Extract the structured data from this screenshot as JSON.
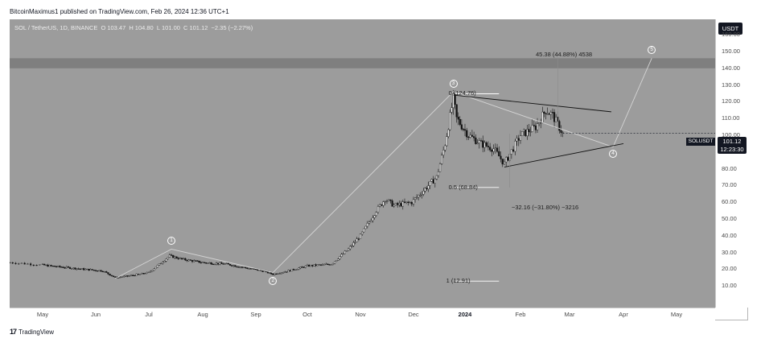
{
  "header": {
    "caption": "BitcoinMaximus1 published on TradingView.com, Feb 26, 2024 12:36 UTC+1"
  },
  "legend": {
    "symbol": "SOL / TetherUS, 1D, BINANCE",
    "open_label": "O",
    "open": "103.47",
    "high_label": "H",
    "high": "104.80",
    "low_label": "L",
    "low": "101.00",
    "close_label": "C",
    "close": "101.12",
    "change": "−2.35 (−2.27%)"
  },
  "price_axis": {
    "currency": "USDT",
    "symbol_tag": "SOLUSDT",
    "last_price": "101.12",
    "countdown": "12:23:30"
  },
  "annotations": {
    "fib_top": "0 (124.76)",
    "fib_mid": "0.5 (68.84)",
    "fib_bottom": "1 (12.91)",
    "measure_up": "45.38 (44.88%) 4538",
    "measure_down": "−32.16 (−31.80%) −3216",
    "waves": [
      "1",
      "2",
      "3",
      "4",
      "5"
    ]
  },
  "branding": {
    "logo": "17",
    "name": "TradingView"
  },
  "colors": {
    "plot_background": "#9c9c9c",
    "resistance_band": "#7f7f7f",
    "candles": "#141414",
    "wave_lines": "#d4d4d4",
    "triangle_lines": "#141414",
    "fib_lines": "#ffffff"
  },
  "chart_data": {
    "type": "candlestick",
    "title": "SOL / TetherUS, 1D, BINANCE",
    "ylim": [
      0,
      172
    ],
    "yticks": [
      10,
      20,
      30,
      40,
      50,
      60,
      70,
      80,
      90,
      100,
      110,
      120,
      130,
      140,
      150,
      160
    ],
    "xticks": [
      "May",
      "Jun",
      "Jul",
      "Aug",
      "Sep",
      "Oct",
      "Nov",
      "Dec",
      "2024",
      "Feb",
      "Mar",
      "Apr",
      "May"
    ],
    "xtick_dates": [
      "2023-05-01",
      "2023-06-01",
      "2023-07-01",
      "2023-08-01",
      "2023-09-01",
      "2023-10-01",
      "2023-11-01",
      "2023-12-01",
      "2024-01-01",
      "2024-02-01",
      "2024-03-01",
      "2024-04-01",
      "2024-05-01"
    ],
    "price_series": {
      "name": "SOLUSDT",
      "points": [
        [
          "2023-04-20",
          24
        ],
        [
          "2023-05-05",
          22
        ],
        [
          "2023-05-25",
          20
        ],
        [
          "2023-06-05",
          19
        ],
        [
          "2023-06-12",
          15
        ],
        [
          "2023-06-20",
          16
        ],
        [
          "2023-07-01",
          18
        ],
        [
          "2023-07-13",
          28
        ],
        [
          "2023-07-20",
          26
        ],
        [
          "2023-08-01",
          24
        ],
        [
          "2023-08-15",
          23
        ],
        [
          "2023-08-25",
          21
        ],
        [
          "2023-09-05",
          19
        ],
        [
          "2023-09-11",
          17
        ],
        [
          "2023-09-20",
          19
        ],
        [
          "2023-10-01",
          22
        ],
        [
          "2023-10-15",
          23
        ],
        [
          "2023-10-25",
          32
        ],
        [
          "2023-11-01",
          40
        ],
        [
          "2023-11-10",
          55
        ],
        [
          "2023-11-15",
          62
        ],
        [
          "2023-11-20",
          58
        ],
        [
          "2023-11-30",
          60
        ],
        [
          "2023-12-08",
          68
        ],
        [
          "2023-12-15",
          75
        ],
        [
          "2023-12-20",
          95
        ],
        [
          "2023-12-25",
          122
        ],
        [
          "2023-12-27",
          110
        ],
        [
          "2024-01-03",
          100
        ],
        [
          "2024-01-10",
          95
        ],
        [
          "2024-01-17",
          92
        ],
        [
          "2024-01-23",
          83
        ],
        [
          "2024-02-01",
          100
        ],
        [
          "2024-02-10",
          105
        ],
        [
          "2024-02-16",
          115
        ],
        [
          "2024-02-20",
          112
        ],
        [
          "2024-02-26",
          101
        ]
      ]
    },
    "resistance_zone": [
      140,
      146
    ],
    "wave_count": [
      {
        "label": "1",
        "date": "2023-07-14",
        "value": 32
      },
      {
        "label": "2",
        "date": "2023-09-11",
        "value": 18
      },
      {
        "label": "3",
        "date": "2023-12-25",
        "value": 126
      },
      {
        "label": "4",
        "date": "2024-03-26",
        "value": 93
      },
      {
        "label": "5",
        "date": "2024-04-17",
        "value": 146
      }
    ],
    "triangle": {
      "upper": [
        [
          "2023-12-25",
          124
        ],
        [
          "2024-03-25",
          114
        ]
      ],
      "lower": [
        [
          "2024-01-23",
          81
        ],
        [
          "2024-04-01",
          95
        ]
      ]
    },
    "fib_levels": [
      {
        "label": "0 (124.76)",
        "value": 124.76
      },
      {
        "label": "0.5 (68.84)",
        "value": 68.84
      },
      {
        "label": "1 (12.91)",
        "value": 12.91
      }
    ],
    "measures": [
      {
        "label": "45.38 (44.88%) 4538",
        "from": 101,
        "to": 146.4
      },
      {
        "label": "−32.16 (−31.80%) −3216",
        "from": 101,
        "to": 68.84
      }
    ]
  }
}
